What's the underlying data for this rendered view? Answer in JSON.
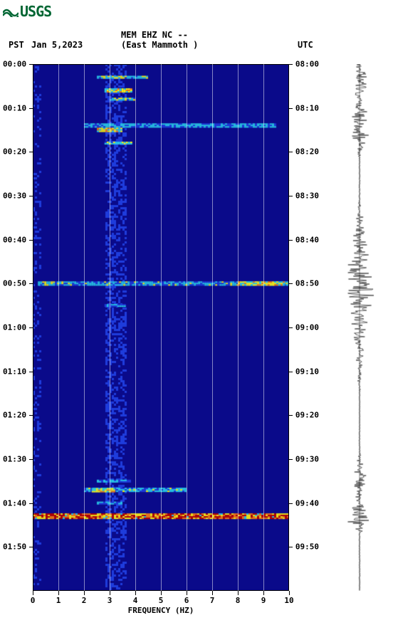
{
  "logo_text": "USGS",
  "header": {
    "station_code": "MEM EHZ NC --",
    "station_name": "(East Mammoth )",
    "left_tz": "PST",
    "date": "Jan 5,2023",
    "right_tz": "UTC"
  },
  "spectrogram": {
    "type": "heatmap",
    "background_color": "#0a0a8a",
    "xlim": [
      0,
      10
    ],
    "xtick_step": 1,
    "xlabel": "FREQUENCY (HZ)",
    "time_start_min": 0,
    "time_end_min": 120,
    "ytick_step_min": 10,
    "left_labels": [
      "00:00",
      "00:10",
      "00:20",
      "00:30",
      "00:40",
      "00:50",
      "01:00",
      "01:10",
      "01:20",
      "01:30",
      "01:40",
      "01:50"
    ],
    "right_labels": [
      "08:00",
      "08:10",
      "08:20",
      "08:30",
      "08:40",
      "08:50",
      "09:00",
      "09:10",
      "09:20",
      "09:30",
      "09:40",
      "09:50"
    ],
    "colormap": {
      "low": "#000050",
      "mid_low": "#0a0a8a",
      "mid": "#1e3cdc",
      "mid_high": "#28c8e6",
      "high": "#f5eb14",
      "very_high": "#f07814",
      "max": "#b40000"
    },
    "features": [
      {
        "t": 3,
        "f0": 2.5,
        "f1": 4.5,
        "intensity": 0.65,
        "width": 4
      },
      {
        "t": 6,
        "f0": 2.8,
        "f1": 3.8,
        "intensity": 0.8,
        "width": 6
      },
      {
        "t": 8,
        "f0": 3.0,
        "f1": 4.0,
        "intensity": 0.7,
        "width": 4
      },
      {
        "t": 14,
        "f0": 2.0,
        "f1": 9.5,
        "intensity": 0.55,
        "width": 6
      },
      {
        "t": 15,
        "f0": 2.5,
        "f1": 3.5,
        "intensity": 0.85,
        "width": 6
      },
      {
        "t": 18,
        "f0": 2.8,
        "f1": 3.8,
        "intensity": 0.7,
        "width": 4
      },
      {
        "t": 50,
        "f0": 0.2,
        "f1": 10,
        "intensity": 0.6,
        "width": 6
      },
      {
        "t": 50,
        "f0": 8.0,
        "f1": 9.8,
        "intensity": 0.82,
        "width": 6
      },
      {
        "t": 55,
        "f0": 2.8,
        "f1": 3.6,
        "intensity": 0.55,
        "width": 4
      },
      {
        "t": 95,
        "f0": 2.5,
        "f1": 3.8,
        "intensity": 0.55,
        "width": 4
      },
      {
        "t": 97,
        "f0": 2.0,
        "f1": 6.0,
        "intensity": 0.6,
        "width": 6
      },
      {
        "t": 97,
        "f0": 2.3,
        "f1": 3.2,
        "intensity": 0.8,
        "width": 5
      },
      {
        "t": 103,
        "f0": 0.0,
        "f1": 10,
        "intensity": 1.0,
        "width": 8
      },
      {
        "t": 100,
        "f0": 2.5,
        "f1": 3.5,
        "intensity": 0.55,
        "width": 4
      }
    ],
    "noise_columns": [
      {
        "f": 0.1,
        "intensity": 0.15
      },
      {
        "f": 3.0,
        "intensity": 0.22
      },
      {
        "f": 3.4,
        "intensity": 0.2
      }
    ]
  },
  "waveform": {
    "color": "#000000",
    "baseline_x": 0.5,
    "events": [
      {
        "t": 4,
        "amp": 0.35,
        "dur": 6
      },
      {
        "t": 14,
        "amp": 0.5,
        "dur": 8
      },
      {
        "t": 50,
        "amp": 0.6,
        "dur": 20
      },
      {
        "t": 62,
        "amp": 0.25,
        "dur": 15
      },
      {
        "t": 95,
        "amp": 0.3,
        "dur": 8
      },
      {
        "t": 103,
        "amp": 0.7,
        "dur": 4
      }
    ]
  }
}
